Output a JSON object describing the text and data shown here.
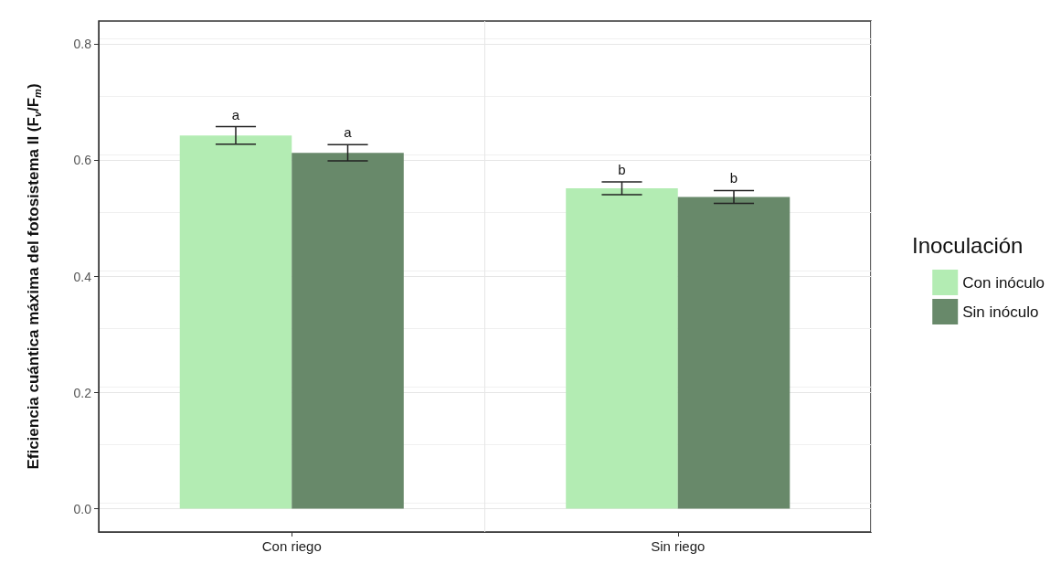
{
  "chart_data": {
    "type": "bar",
    "ylabel": "Eficiencia cuántica máxima del fotosistema II (F$_{v}$/F$_{m}$)",
    "legend_title": "Inoculación",
    "categories": [
      "Con riego",
      "Sin riego"
    ],
    "series": [
      {
        "name": "Con inóculo",
        "color": "#b3ecb3",
        "values": [
          0.643,
          0.552
        ],
        "errors": [
          0.015,
          0.011
        ],
        "value_labels": [
          "a",
          "b"
        ]
      },
      {
        "name": "Sin inóculo",
        "color": "#68896a",
        "values": [
          0.613,
          0.537
        ],
        "errors": [
          0.014,
          0.011
        ],
        "value_labels": [
          "a",
          "b"
        ]
      }
    ],
    "ylim": [
      -0.04,
      0.84
    ],
    "yticks": [
      {
        "value": 0,
        "label": "0.0"
      },
      {
        "value": 0.2,
        "label": "0.2"
      },
      {
        "value": 0.4,
        "label": "0.4"
      },
      {
        "value": 0.6,
        "label": "0.6"
      },
      {
        "value": 0.8,
        "label": "0.8"
      }
    ],
    "grid": true,
    "legend": "right"
  }
}
